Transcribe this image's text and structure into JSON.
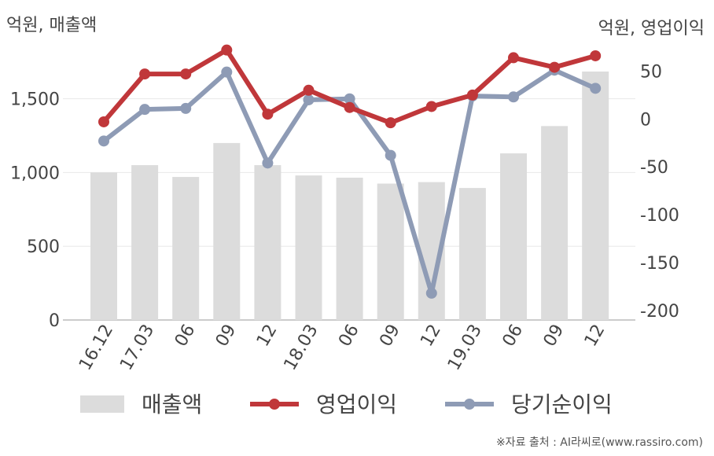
{
  "chart_data": {
    "type": "bar+line",
    "y_left_unit": "억원, 매출액",
    "y_right_unit": "억원, 영업이익",
    "categories": [
      "16.12",
      "17.03",
      "06",
      "09",
      "12",
      "18.03",
      "06",
      "09",
      "12",
      "19.03",
      "06",
      "09",
      "12"
    ],
    "y_left_ticks": [
      "0",
      "500",
      "1,000",
      "1,500"
    ],
    "y_right_ticks": [
      "50",
      "0",
      "-50",
      "-100",
      "-150",
      "-200"
    ],
    "y_left_range": [
      0,
      1850
    ],
    "y_right_range": [
      -210,
      75
    ],
    "series": [
      {
        "name": "매출액",
        "type": "bar",
        "color": "#dcdcdc",
        "values": [
          1000,
          1050,
          970,
          1200,
          1050,
          980,
          965,
          925,
          935,
          895,
          1130,
          1315,
          1685
        ]
      },
      {
        "name": "영업이익",
        "type": "line",
        "axis": "right",
        "color": "#c0373a",
        "values": [
          -3,
          47,
          47,
          72,
          5,
          30,
          12,
          -4,
          13,
          25,
          64,
          54,
          66
        ]
      },
      {
        "name": "당기순이익",
        "type": "line",
        "axis": "right",
        "color": "#8e9bb5",
        "values": [
          -23,
          10,
          11,
          49,
          -46,
          20,
          21,
          -38,
          -182,
          24,
          23,
          51,
          32
        ]
      }
    ],
    "grid": true,
    "legend_position": "bottom"
  },
  "footer": {
    "source": "※자료 출처 : AI라씨로(www.rassiro.com)"
  }
}
